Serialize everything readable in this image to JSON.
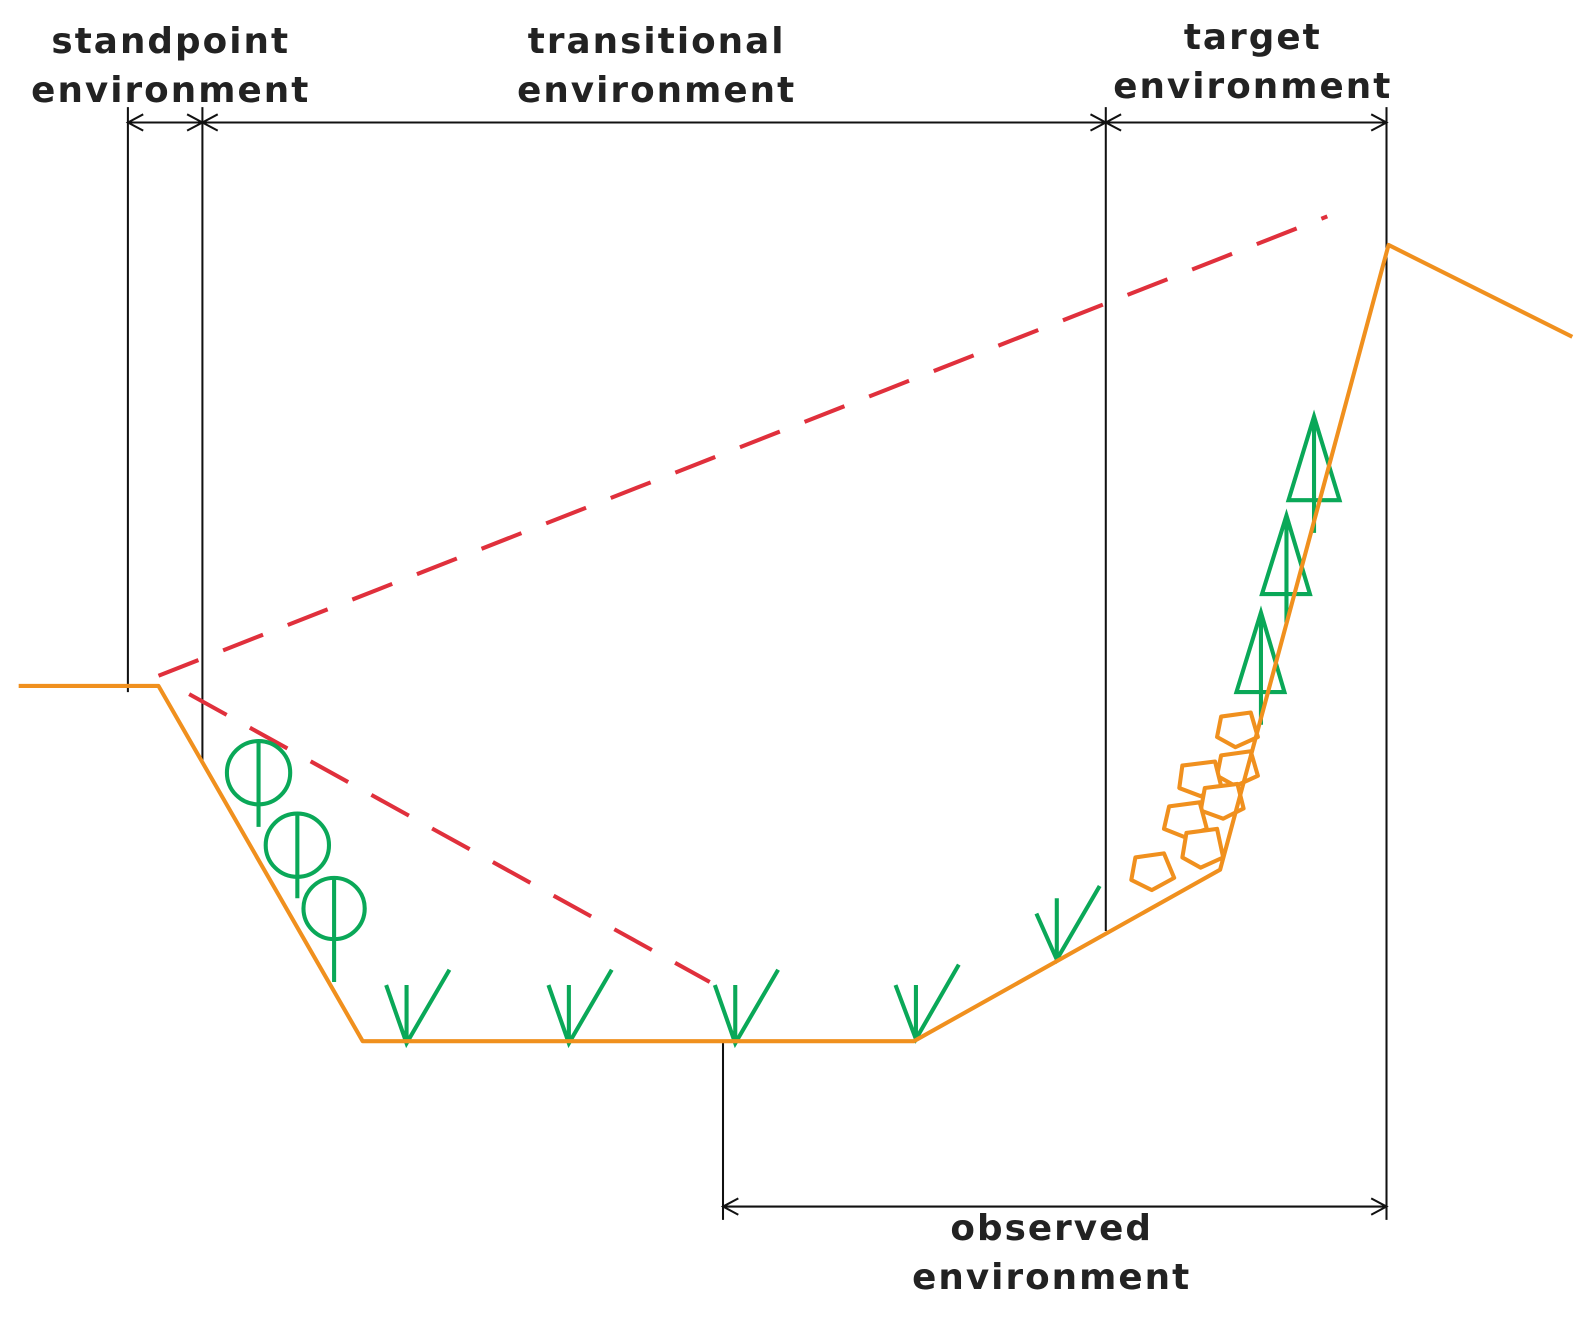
{
  "labels": {
    "standpoint": [
      "standpoint",
      "environment"
    ],
    "transitional": [
      "transitional",
      "environment"
    ],
    "target": [
      "target",
      "environment"
    ],
    "observed": [
      "observed",
      "environment"
    ]
  }
}
